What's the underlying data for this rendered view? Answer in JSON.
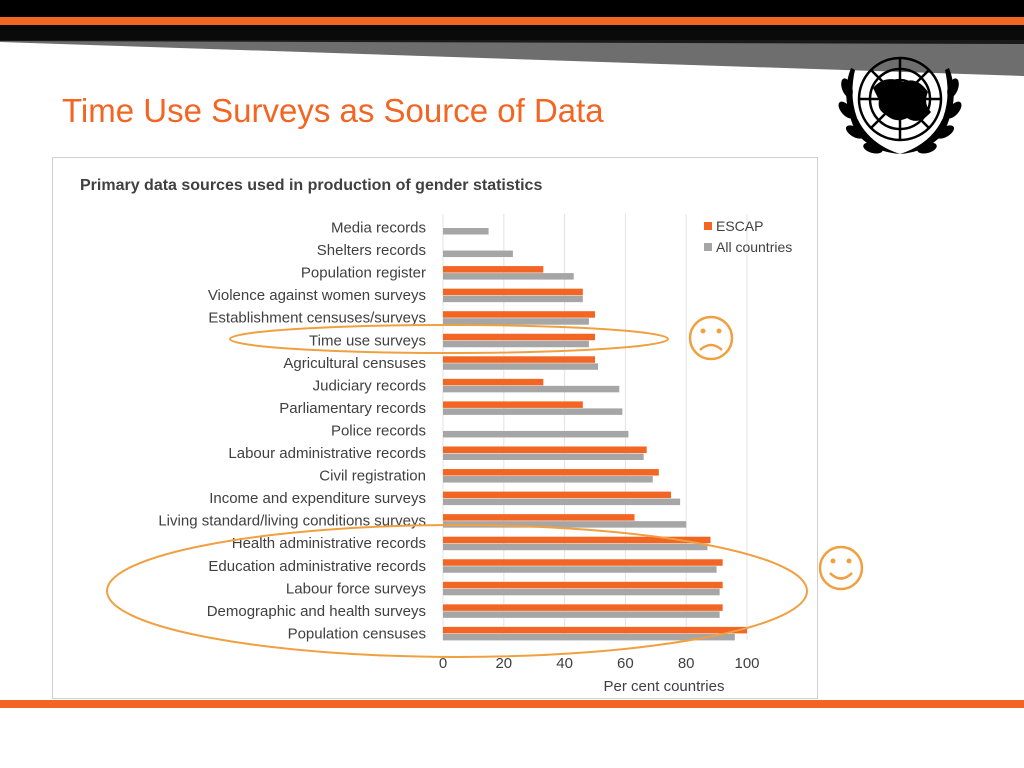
{
  "slide": {
    "title": "Time Use Surveys as Source of Data",
    "accent_color": "#f26522",
    "logo_icon": "un-emblem-icon",
    "sad_icon": "frown-face-icon",
    "happy_icon": "smile-face-icon"
  },
  "chart_data": {
    "type": "bar",
    "orientation": "horizontal",
    "title": "Primary data sources used in production of gender statistics",
    "xlabel": "Per cent countries",
    "ylabel": "",
    "xlim": [
      0,
      100
    ],
    "xticks": [
      0,
      20,
      40,
      60,
      80,
      100
    ],
    "grid": true,
    "legend_position": "top-right",
    "categories": [
      "Media records",
      "Shelters records",
      "Population register",
      "Violence against women surveys",
      "Establishment censuses/surveys",
      "Time use surveys",
      "Agricultural censuses",
      "Judiciary records",
      "Parliamentary records",
      "Police records",
      "Labour administrative records",
      "Civil registration",
      "Income and expenditure surveys",
      "Living standard/living conditions surveys",
      "Health administrative records",
      "Education administrative records",
      "Labour force surveys",
      "Demographic and health surveys",
      "Population censuses"
    ],
    "series": [
      {
        "name": "ESCAP",
        "color": "#f26522",
        "values": [
          0,
          0,
          33,
          46,
          50,
          50,
          50,
          33,
          46,
          0,
          67,
          71,
          75,
          63,
          88,
          92,
          92,
          92,
          100
        ]
      },
      {
        "name": "All countries",
        "color": "#a6a6a6",
        "values": [
          15,
          23,
          43,
          46,
          48,
          48,
          51,
          58,
          59,
          61,
          66,
          69,
          78,
          80,
          87,
          90,
          91,
          91,
          96
        ]
      }
    ]
  }
}
